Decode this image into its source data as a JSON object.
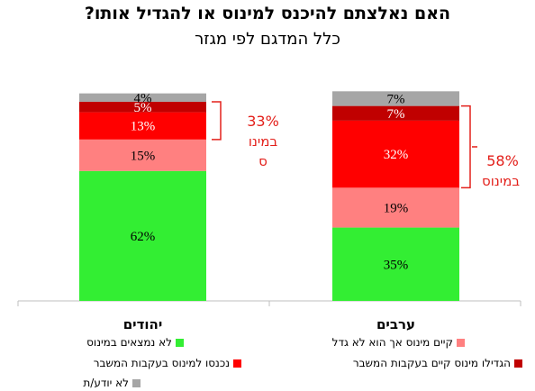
{
  "title": "האם נאלצתם להיכנס למינוס או להגדיל אותו?",
  "subtitle": "כלל המדגם לפי מגזר",
  "chart_data": {
    "type": "bar",
    "stacked": true,
    "categories": [
      "יהודים",
      "ערבים"
    ],
    "series": [
      {
        "name": "לא נמצאים במינוס",
        "color": "#33ee33",
        "values": [
          62,
          35
        ]
      },
      {
        "name": "קיים מינוס אך הוא לא גדל",
        "color": "#ff8080",
        "values": [
          15,
          19
        ]
      },
      {
        "name": "נכנסו למינוס בעקבות המשבר",
        "color": "#ff0000",
        "values": [
          13,
          32
        ]
      },
      {
        "name": "הגדילו מינוס קיים בעקבות המשבר",
        "color": "#c00000",
        "values": [
          5,
          7
        ]
      },
      {
        "name": "לא יודע/ת",
        "color": "#a6a6a6",
        "values": [
          4,
          7
        ]
      }
    ],
    "value_labels": [
      [
        "62%",
        "15%",
        "13%",
        "5%",
        "4%"
      ],
      [
        "35%",
        "19%",
        "32%",
        "7%",
        "7%"
      ]
    ],
    "callouts": [
      {
        "category": "יהודים",
        "value": "33%",
        "label_lines": [
          "במינו",
          "ס"
        ]
      },
      {
        "category": "ערבים",
        "value": "58%",
        "label_lines": [
          "במינוס"
        ]
      }
    ],
    "ylim": [
      0,
      101
    ],
    "legend_position": "bottom"
  }
}
